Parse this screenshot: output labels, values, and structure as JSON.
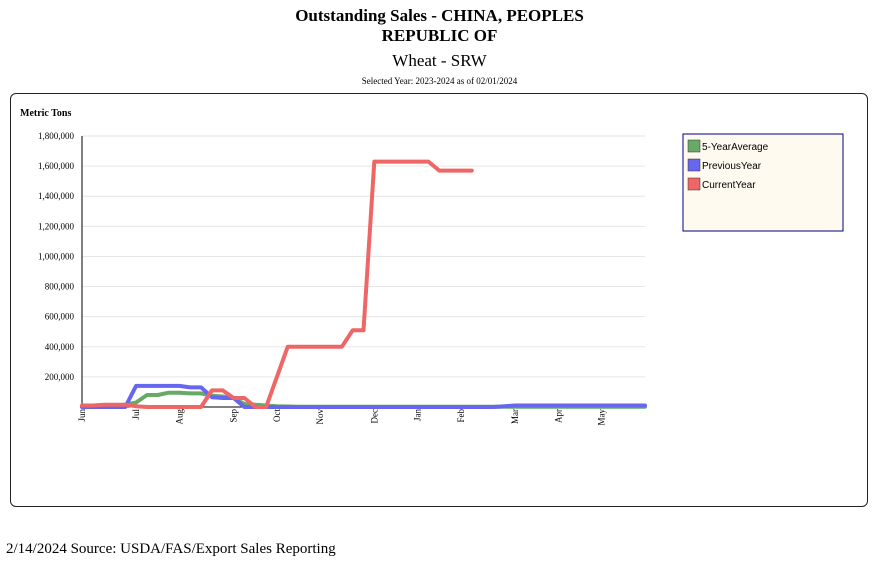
{
  "header": {
    "title_line1": "Outstanding Sales - CHINA, PEOPLES",
    "title_line2": "REPUBLIC OF",
    "subtitle": "Wheat - SRW",
    "selected_year": "Selected Year: 2023-2024 as of 02/01/2024"
  },
  "footer": {
    "text": "2/14/2024 Source: USDA/FAS/Export Sales Reporting"
  },
  "chart_data": {
    "type": "line",
    "title": "Outstanding Sales - CHINA, PEOPLES REPUBLIC OF",
    "subtitle": "Wheat - SRW",
    "ylabel": "Metric Tons",
    "ylim": [
      0,
      1800000
    ],
    "yticks": [
      200000,
      400000,
      600000,
      800000,
      1000000,
      1200000,
      1400000,
      1600000,
      1800000
    ],
    "ytick_labels": [
      "200,000",
      "400,000",
      "600,000",
      "800,000",
      "1,000,000",
      "1,200,000",
      "1,400,000",
      "1,600,000",
      "1,800,000"
    ],
    "x_week_count": 53,
    "xticks": [
      {
        "label": "Jun",
        "week": 0
      },
      {
        "label": "Jul",
        "week": 5
      },
      {
        "label": "Aug",
        "week": 9
      },
      {
        "label": "Sep",
        "week": 14
      },
      {
        "label": "Oct",
        "week": 18
      },
      {
        "label": "Nov",
        "week": 22
      },
      {
        "label": "Dec",
        "week": 27
      },
      {
        "label": "Jan",
        "week": 31
      },
      {
        "label": "Feb",
        "week": 35
      },
      {
        "label": "Mar",
        "week": 40
      },
      {
        "label": "Apr",
        "week": 44
      },
      {
        "label": "May",
        "week": 48
      }
    ],
    "grid": true,
    "legend_position": "top-right",
    "series": [
      {
        "name": "5-YearAverage",
        "color": "#66aa66",
        "x": [
          0,
          1,
          2,
          3,
          4,
          5,
          6,
          7,
          8,
          9,
          10,
          11,
          12,
          13,
          14,
          15,
          16,
          17,
          18,
          19,
          20,
          21,
          22,
          23,
          24,
          25,
          26,
          27,
          28,
          29,
          30,
          31,
          32,
          33,
          34,
          35,
          36,
          37,
          38,
          39,
          40,
          41,
          42,
          43,
          44,
          45,
          46,
          47,
          48,
          49,
          50,
          51,
          52
        ],
        "values": [
          5000,
          5000,
          10000,
          10000,
          15000,
          30000,
          80000,
          80000,
          95000,
          95000,
          90000,
          90000,
          75000,
          70000,
          60000,
          20000,
          15000,
          10000,
          5000,
          3000,
          2000,
          2000,
          2000,
          2000,
          2000,
          2000,
          2000,
          2000,
          2000,
          2000,
          2000,
          2000,
          2000,
          2000,
          2000,
          2000,
          2000,
          2000,
          2000,
          2000,
          2000,
          2000,
          2000,
          2000,
          2000,
          2000,
          2000,
          2000,
          2000,
          2000,
          2000,
          2000,
          2000
        ]
      },
      {
        "name": "PreviousYear",
        "color": "#6666ee",
        "x": [
          0,
          1,
          2,
          3,
          4,
          5,
          6,
          7,
          8,
          9,
          10,
          11,
          12,
          13,
          14,
          15,
          16,
          17,
          18,
          19,
          20,
          21,
          22,
          23,
          24,
          25,
          26,
          27,
          28,
          29,
          30,
          31,
          32,
          33,
          34,
          35,
          36,
          37,
          38,
          39,
          40,
          41,
          42,
          43,
          44,
          45,
          46,
          47,
          48,
          49,
          50,
          51,
          52
        ],
        "values": [
          0,
          0,
          0,
          0,
          0,
          140000,
          140000,
          140000,
          140000,
          140000,
          130000,
          130000,
          65000,
          60000,
          60000,
          0,
          0,
          0,
          0,
          0,
          0,
          0,
          0,
          0,
          0,
          0,
          0,
          0,
          0,
          0,
          0,
          0,
          0,
          0,
          0,
          0,
          0,
          0,
          0,
          5000,
          10000,
          10000,
          10000,
          10000,
          10000,
          10000,
          10000,
          10000,
          10000,
          10000,
          10000,
          10000,
          10000
        ]
      },
      {
        "name": "CurrentYear",
        "color": "#ee6666",
        "x": [
          0,
          1,
          2,
          3,
          4,
          5,
          6,
          7,
          8,
          9,
          10,
          11,
          12,
          13,
          14,
          15,
          16,
          17,
          18,
          19,
          20,
          21,
          22,
          23,
          24,
          25,
          26,
          27,
          28,
          29,
          30,
          31,
          32,
          33,
          34,
          35,
          36
        ],
        "values": [
          10000,
          10000,
          15000,
          15000,
          15000,
          5000,
          0,
          0,
          0,
          0,
          0,
          0,
          110000,
          110000,
          60000,
          60000,
          0,
          0,
          200000,
          400000,
          400000,
          400000,
          400000,
          400000,
          400000,
          510000,
          510000,
          1630000,
          1630000,
          1630000,
          1630000,
          1630000,
          1630000,
          1570000,
          1570000,
          1570000,
          1570000
        ]
      }
    ]
  }
}
